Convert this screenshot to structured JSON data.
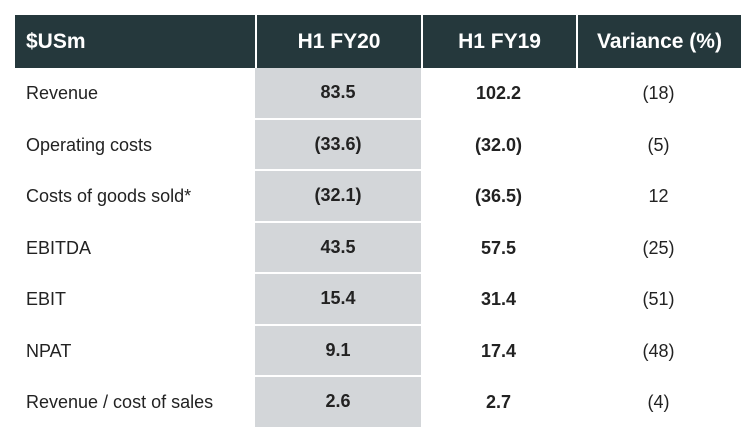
{
  "table": {
    "headers": [
      "$USm",
      "H1 FY20",
      "H1 FY19",
      "Variance (%)"
    ],
    "rows": [
      {
        "label": "Revenue",
        "fy20": "83.5",
        "fy19": "102.2",
        "variance": "(18)"
      },
      {
        "label": "Operating costs",
        "fy20": "(33.6)",
        "fy19": "(32.0)",
        "variance": "(5)"
      },
      {
        "label": "Costs of goods sold*",
        "fy20": "(32.1)",
        "fy19": "(36.5)",
        "variance": "12"
      },
      {
        "label": "EBITDA",
        "fy20": "43.5",
        "fy19": "57.5",
        "variance": "(25)"
      },
      {
        "label": "EBIT",
        "fy20": "15.4",
        "fy19": "31.4",
        "variance": "(51)"
      },
      {
        "label": "NPAT",
        "fy20": "9.1",
        "fy19": "17.4",
        "variance": "(48)"
      },
      {
        "label": "Revenue / cost of sales",
        "fy20": "2.6",
        "fy19": "2.7",
        "variance": "(4)"
      }
    ]
  },
  "colors": {
    "header_bg": "#25383c",
    "highlight_column_bg": "#d3d6d9"
  }
}
